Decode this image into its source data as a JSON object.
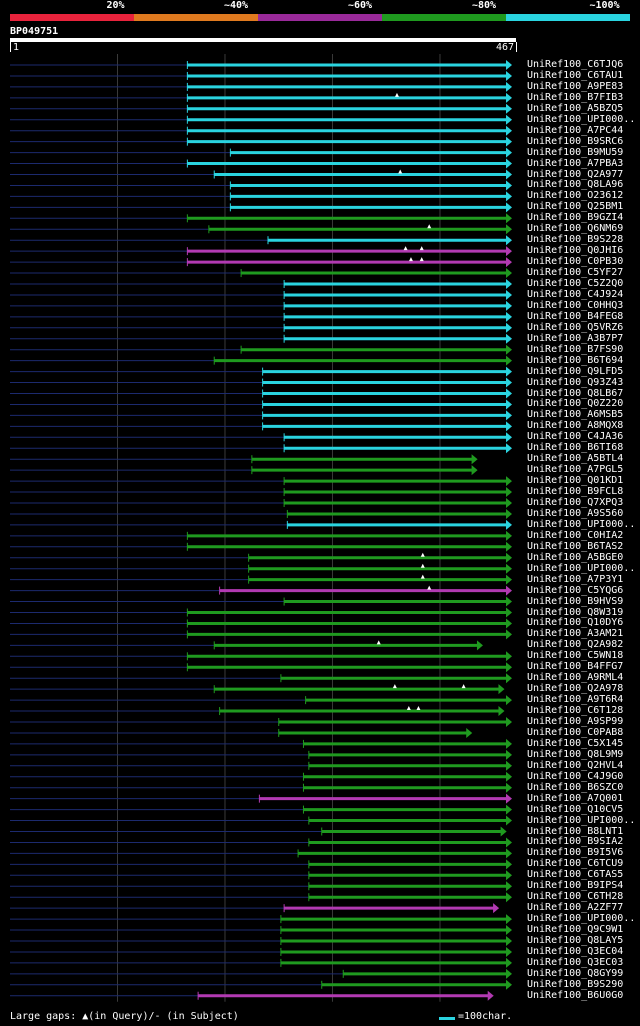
{
  "colors": {
    "cyan": "#2ad4e0",
    "green": "#1f9a1f",
    "magenta": "#b23ab2",
    "red": "#e8233c",
    "orange": "#e07a1f",
    "navy": "#1c2a6e",
    "grid": "#3a3a3a"
  },
  "legend": {
    "segments": [
      {
        "label": "20%",
        "color": "#e8233c"
      },
      {
        "label": "~40%",
        "color": "#e07a1f"
      },
      {
        "label": "~60%",
        "color": "#9a2a9a"
      },
      {
        "label": "~80%",
        "color": "#1f9a1f"
      },
      {
        "label": "~100%",
        "color": "#2ad4e0"
      }
    ]
  },
  "query": {
    "name": "BP049751",
    "start": "1",
    "end": "467",
    "length": 467
  },
  "footer": {
    "gaps_text": "Large gaps: ▲(in Query)/- (in Subject)",
    "scale_text": "=100char."
  },
  "chart_data": {
    "type": "alignment",
    "query_length": 467,
    "hits": [
      {
        "name": "UniRef100_C6TJQ6",
        "start": 165,
        "end": 467,
        "color": "cyan"
      },
      {
        "name": "UniRef100_C6TAU1",
        "start": 165,
        "end": 467,
        "color": "cyan"
      },
      {
        "name": "UniRef100_A9PE83",
        "start": 165,
        "end": 467,
        "color": "cyan"
      },
      {
        "name": "UniRef100_B7FIB3",
        "start": 165,
        "end": 467,
        "color": "cyan",
        "marks": [
          360
        ]
      },
      {
        "name": "UniRef100_A5BZQ5",
        "start": 165,
        "end": 467,
        "color": "cyan"
      },
      {
        "name": "UniRef100_UPI000..",
        "start": 165,
        "end": 467,
        "color": "cyan"
      },
      {
        "name": "UniRef100_A7PC44",
        "start": 165,
        "end": 467,
        "color": "cyan"
      },
      {
        "name": "UniRef100_B9SRC6",
        "start": 165,
        "end": 467,
        "color": "cyan"
      },
      {
        "name": "UniRef100_B9MU59",
        "start": 205,
        "end": 467,
        "color": "cyan"
      },
      {
        "name": "UniRef100_A7PBA3",
        "start": 165,
        "end": 467,
        "color": "cyan"
      },
      {
        "name": "UniRef100_Q2A977",
        "start": 190,
        "end": 467,
        "color": "cyan",
        "marks": [
          363
        ]
      },
      {
        "name": "UniRef100_Q8LA96",
        "start": 205,
        "end": 467,
        "color": "cyan"
      },
      {
        "name": "UniRef100_O23612",
        "start": 205,
        "end": 467,
        "color": "cyan"
      },
      {
        "name": "UniRef100_Q25BM1",
        "start": 205,
        "end": 467,
        "color": "cyan"
      },
      {
        "name": "UniRef100_B9GZI4",
        "start": 165,
        "end": 467,
        "color": "green"
      },
      {
        "name": "UniRef100_Q6NM69",
        "start": 185,
        "end": 467,
        "color": "green",
        "marks": [
          390
        ]
      },
      {
        "name": "UniRef100_B9S228",
        "start": 240,
        "end": 467,
        "color": "cyan"
      },
      {
        "name": "UniRef100_Q0JHI6",
        "start": 165,
        "end": 467,
        "color": "magenta",
        "marks": [
          368,
          383
        ]
      },
      {
        "name": "UniRef100_C0PB30",
        "start": 165,
        "end": 467,
        "color": "magenta",
        "marks": [
          373,
          383
        ]
      },
      {
        "name": "UniRef100_C5YF27",
        "start": 215,
        "end": 467,
        "color": "green"
      },
      {
        "name": "UniRef100_C5Z2Q0",
        "start": 255,
        "end": 467,
        "color": "cyan"
      },
      {
        "name": "UniRef100_C4J924",
        "start": 255,
        "end": 467,
        "color": "cyan"
      },
      {
        "name": "UniRef100_C0HHQ3",
        "start": 255,
        "end": 467,
        "color": "cyan"
      },
      {
        "name": "UniRef100_B4FEG8",
        "start": 255,
        "end": 467,
        "color": "cyan"
      },
      {
        "name": "UniRef100_Q5VRZ6",
        "start": 255,
        "end": 467,
        "color": "cyan"
      },
      {
        "name": "UniRef100_A3B7P7",
        "start": 255,
        "end": 467,
        "color": "cyan"
      },
      {
        "name": "UniRef100_B7FS90",
        "start": 215,
        "end": 467,
        "color": "green"
      },
      {
        "name": "UniRef100_B6T694",
        "start": 190,
        "end": 467,
        "color": "green"
      },
      {
        "name": "UniRef100_Q9LFD5",
        "start": 235,
        "end": 467,
        "color": "cyan"
      },
      {
        "name": "UniRef100_Q93Z43",
        "start": 235,
        "end": 467,
        "color": "cyan"
      },
      {
        "name": "UniRef100_Q8LB67",
        "start": 235,
        "end": 467,
        "color": "cyan"
      },
      {
        "name": "UniRef100_Q0Z220",
        "start": 235,
        "end": 467,
        "color": "cyan"
      },
      {
        "name": "UniRef100_A6MSB5",
        "start": 235,
        "end": 467,
        "color": "cyan"
      },
      {
        "name": "UniRef100_A8MQX8",
        "start": 235,
        "end": 467,
        "color": "cyan"
      },
      {
        "name": "UniRef100_C4JA36",
        "start": 255,
        "end": 467,
        "color": "cyan"
      },
      {
        "name": "UniRef100_B6TI68",
        "start": 255,
        "end": 467,
        "color": "cyan"
      },
      {
        "name": "UniRef100_A5BTL4",
        "start": 225,
        "end": 435,
        "color": "green"
      },
      {
        "name": "UniRef100_A7PGL5",
        "start": 225,
        "end": 435,
        "color": "green"
      },
      {
        "name": "UniRef100_Q01KD1",
        "start": 255,
        "end": 467,
        "color": "green"
      },
      {
        "name": "UniRef100_B9FCL8",
        "start": 255,
        "end": 467,
        "color": "green"
      },
      {
        "name": "UniRef100_Q7XPQ3",
        "start": 255,
        "end": 467,
        "color": "green"
      },
      {
        "name": "UniRef100_A9S560",
        "start": 258,
        "end": 467,
        "color": "green"
      },
      {
        "name": "UniRef100_UPI000..",
        "start": 258,
        "end": 467,
        "color": "cyan"
      },
      {
        "name": "UniRef100_C0HIA2",
        "start": 165,
        "end": 467,
        "color": "green"
      },
      {
        "name": "UniRef100_B6TAS2",
        "start": 165,
        "end": 467,
        "color": "green"
      },
      {
        "name": "UniRef100_A5BGE0",
        "start": 222,
        "end": 467,
        "color": "green",
        "marks": [
          384
        ]
      },
      {
        "name": "UniRef100_UPI000..",
        "start": 222,
        "end": 467,
        "color": "green",
        "marks": [
          384
        ]
      },
      {
        "name": "UniRef100_A7P3Y1",
        "start": 222,
        "end": 467,
        "color": "green",
        "marks": [
          384
        ]
      },
      {
        "name": "UniRef100_C5YQG6",
        "start": 195,
        "end": 467,
        "color": "magenta",
        "marks": [
          390
        ]
      },
      {
        "name": "UniRef100_B9HVS9",
        "start": 255,
        "end": 467,
        "color": "green"
      },
      {
        "name": "UniRef100_Q8W319",
        "start": 165,
        "end": 467,
        "color": "green"
      },
      {
        "name": "UniRef100_Q10DY6",
        "start": 165,
        "end": 467,
        "color": "green"
      },
      {
        "name": "UniRef100_A3AM21",
        "start": 165,
        "end": 467,
        "color": "green"
      },
      {
        "name": "UniRef100_Q2A982",
        "start": 190,
        "end": 440,
        "color": "green",
        "marks": [
          343
        ]
      },
      {
        "name": "UniRef100_C5WN18",
        "start": 165,
        "end": 467,
        "color": "green"
      },
      {
        "name": "UniRef100_B4FFG7",
        "start": 165,
        "end": 467,
        "color": "green"
      },
      {
        "name": "UniRef100_A9RML4",
        "start": 252,
        "end": 467,
        "color": "green"
      },
      {
        "name": "UniRef100_Q2A978",
        "start": 190,
        "end": 460,
        "color": "green",
        "marks": [
          358,
          422
        ]
      },
      {
        "name": "UniRef100_A9T6R4",
        "start": 275,
        "end": 467,
        "color": "green"
      },
      {
        "name": "UniRef100_C6T128",
        "start": 195,
        "end": 460,
        "color": "green",
        "marks": [
          371,
          380
        ]
      },
      {
        "name": "UniRef100_A9SP99",
        "start": 250,
        "end": 467,
        "color": "green"
      },
      {
        "name": "UniRef100_C0PAB8",
        "start": 250,
        "end": 430,
        "color": "green"
      },
      {
        "name": "UniRef100_C5X145",
        "start": 273,
        "end": 467,
        "color": "green"
      },
      {
        "name": "UniRef100_Q8L9M9",
        "start": 278,
        "end": 467,
        "color": "green"
      },
      {
        "name": "UniRef100_Q2HVL4",
        "start": 278,
        "end": 467,
        "color": "green"
      },
      {
        "name": "UniRef100_C4J9G0",
        "start": 273,
        "end": 467,
        "color": "green"
      },
      {
        "name": "UniRef100_B6SZC0",
        "start": 273,
        "end": 467,
        "color": "green"
      },
      {
        "name": "UniRef100_A7Q001",
        "start": 232,
        "end": 467,
        "color": "magenta"
      },
      {
        "name": "UniRef100_Q10CV5",
        "start": 273,
        "end": 467,
        "color": "green"
      },
      {
        "name": "UniRef100_UPI000..",
        "start": 278,
        "end": 467,
        "color": "green"
      },
      {
        "name": "UniRef100_B8LNT1",
        "start": 290,
        "end": 462,
        "color": "green"
      },
      {
        "name": "UniRef100_B9SIA2",
        "start": 278,
        "end": 467,
        "color": "green"
      },
      {
        "name": "UniRef100_B9I5V6",
        "start": 268,
        "end": 467,
        "color": "green"
      },
      {
        "name": "UniRef100_C6TCU9",
        "start": 278,
        "end": 467,
        "color": "green"
      },
      {
        "name": "UniRef100_C6TAS5",
        "start": 278,
        "end": 467,
        "color": "green"
      },
      {
        "name": "UniRef100_B9IPS4",
        "start": 278,
        "end": 467,
        "color": "green"
      },
      {
        "name": "UniRef100_C6TH28",
        "start": 278,
        "end": 467,
        "color": "green"
      },
      {
        "name": "UniRef100_A2ZF77",
        "start": 255,
        "end": 455,
        "color": "magenta"
      },
      {
        "name": "UniRef100_UPI000..",
        "start": 252,
        "end": 467,
        "color": "green"
      },
      {
        "name": "UniRef100_Q9C9W1",
        "start": 252,
        "end": 467,
        "color": "green"
      },
      {
        "name": "UniRef100_Q8LAY5",
        "start": 252,
        "end": 467,
        "color": "green"
      },
      {
        "name": "UniRef100_Q3EC04",
        "start": 252,
        "end": 467,
        "color": "green"
      },
      {
        "name": "UniRef100_Q3EC03",
        "start": 252,
        "end": 467,
        "color": "green"
      },
      {
        "name": "UniRef100_Q8GY99",
        "start": 310,
        "end": 467,
        "color": "green"
      },
      {
        "name": "UniRef100_B9S290",
        "start": 290,
        "end": 467,
        "color": "green"
      },
      {
        "name": "UniRef100_B6U0G0",
        "start": 175,
        "end": 450,
        "color": "magenta"
      }
    ]
  }
}
